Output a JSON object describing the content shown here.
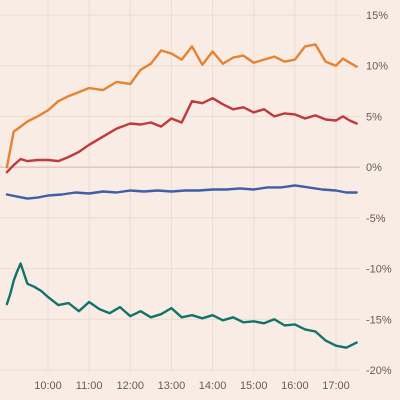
{
  "chart_data": {
    "type": "line",
    "title": "",
    "xlabel": "",
    "ylabel": "",
    "y_unit": "%",
    "grid": true,
    "xlim": [
      "09:00",
      "17:30"
    ],
    "ylim": [
      -20,
      15
    ],
    "y_ticks": [
      15,
      10,
      5,
      0,
      -5,
      -10,
      -15,
      -20
    ],
    "y_tick_labels": [
      "15%",
      "10%",
      "5%",
      "0%",
      "-5%",
      "-10%",
      "-15%",
      "-20%"
    ],
    "x_ticks": [
      "10:00",
      "11:00",
      "12:00",
      "13:00",
      "14:00",
      "15:00",
      "16:00",
      "17:00"
    ],
    "colors": {
      "orange": "#e58331",
      "red": "#c0393b",
      "blue": "#3d5fa8",
      "teal": "#127369"
    },
    "series": [
      {
        "color": "#e58331",
        "x": [
          "09:00",
          "09:10",
          "09:20",
          "09:30",
          "09:45",
          "10:00",
          "10:15",
          "10:30",
          "10:45",
          "11:00",
          "11:20",
          "11:40",
          "12:00",
          "12:15",
          "12:30",
          "12:45",
          "13:00",
          "13:15",
          "13:30",
          "13:45",
          "14:00",
          "14:15",
          "14:30",
          "14:45",
          "15:00",
          "15:15",
          "15:30",
          "15:45",
          "16:00",
          "16:15",
          "16:30",
          "16:45",
          "17:00",
          "17:10",
          "17:20",
          "17:30"
        ],
        "values": [
          0.0,
          3.5,
          4.0,
          4.5,
          5.0,
          5.6,
          6.5,
          7.0,
          7.4,
          7.8,
          7.6,
          8.4,
          8.2,
          9.6,
          10.2,
          11.5,
          11.2,
          10.6,
          11.9,
          10.1,
          11.4,
          10.2,
          10.8,
          11.0,
          10.3,
          10.6,
          10.9,
          10.4,
          10.6,
          11.9,
          12.1,
          10.4,
          10.0,
          10.7,
          10.3,
          9.9
        ]
      },
      {
        "color": "#c0393b",
        "x": [
          "09:00",
          "09:10",
          "09:20",
          "09:30",
          "09:45",
          "10:00",
          "10:15",
          "10:30",
          "10:45",
          "11:00",
          "11:20",
          "11:40",
          "12:00",
          "12:15",
          "12:30",
          "12:45",
          "13:00",
          "13:15",
          "13:30",
          "13:45",
          "14:00",
          "14:15",
          "14:30",
          "14:45",
          "15:00",
          "15:15",
          "15:30",
          "15:45",
          "16:00",
          "16:15",
          "16:30",
          "16:45",
          "17:00",
          "17:10",
          "17:20",
          "17:30"
        ],
        "values": [
          -0.5,
          0.2,
          0.8,
          0.6,
          0.7,
          0.7,
          0.6,
          1.0,
          1.5,
          2.2,
          3.0,
          3.8,
          4.3,
          4.2,
          4.4,
          4.0,
          4.8,
          4.4,
          6.5,
          6.3,
          6.8,
          6.2,
          5.7,
          5.9,
          5.4,
          5.7,
          5.0,
          5.3,
          5.2,
          4.8,
          5.1,
          4.7,
          4.6,
          5.0,
          4.6,
          4.3
        ]
      },
      {
        "color": "#3d5fa8",
        "x": [
          "09:00",
          "09:15",
          "09:30",
          "09:45",
          "10:00",
          "10:20",
          "10:40",
          "11:00",
          "11:20",
          "11:40",
          "12:00",
          "12:20",
          "12:40",
          "13:00",
          "13:20",
          "13:40",
          "14:00",
          "14:20",
          "14:40",
          "15:00",
          "15:20",
          "15:40",
          "16:00",
          "16:20",
          "16:40",
          "17:00",
          "17:15",
          "17:30"
        ],
        "values": [
          -2.7,
          -2.9,
          -3.1,
          -3.0,
          -2.8,
          -2.7,
          -2.5,
          -2.6,
          -2.4,
          -2.5,
          -2.3,
          -2.4,
          -2.3,
          -2.4,
          -2.3,
          -2.3,
          -2.2,
          -2.2,
          -2.1,
          -2.2,
          -2.0,
          -2.0,
          -1.8,
          -2.0,
          -2.2,
          -2.3,
          -2.5,
          -2.5
        ]
      },
      {
        "color": "#127369",
        "x": [
          "09:00",
          "09:05",
          "09:10",
          "09:15",
          "09:20",
          "09:25",
          "09:30",
          "09:40",
          "09:50",
          "10:00",
          "10:15",
          "10:30",
          "10:45",
          "11:00",
          "11:15",
          "11:30",
          "11:45",
          "12:00",
          "12:15",
          "12:30",
          "12:45",
          "13:00",
          "13:15",
          "13:30",
          "13:45",
          "14:00",
          "14:15",
          "14:30",
          "14:45",
          "15:00",
          "15:15",
          "15:30",
          "15:45",
          "16:00",
          "16:15",
          "16:30",
          "16:45",
          "17:00",
          "17:15",
          "17:30"
        ],
        "values": [
          -13.5,
          -12.5,
          -11.2,
          -10.3,
          -9.5,
          -10.5,
          -11.5,
          -11.8,
          -12.2,
          -12.8,
          -13.6,
          -13.4,
          -14.2,
          -13.3,
          -14.0,
          -14.4,
          -13.8,
          -14.7,
          -14.2,
          -14.8,
          -14.5,
          -13.9,
          -14.8,
          -14.6,
          -14.9,
          -14.6,
          -15.1,
          -14.8,
          -15.3,
          -15.2,
          -15.4,
          -15.0,
          -15.6,
          -15.5,
          -16.0,
          -16.2,
          -17.1,
          -17.6,
          -17.8,
          -17.3
        ]
      }
    ]
  }
}
